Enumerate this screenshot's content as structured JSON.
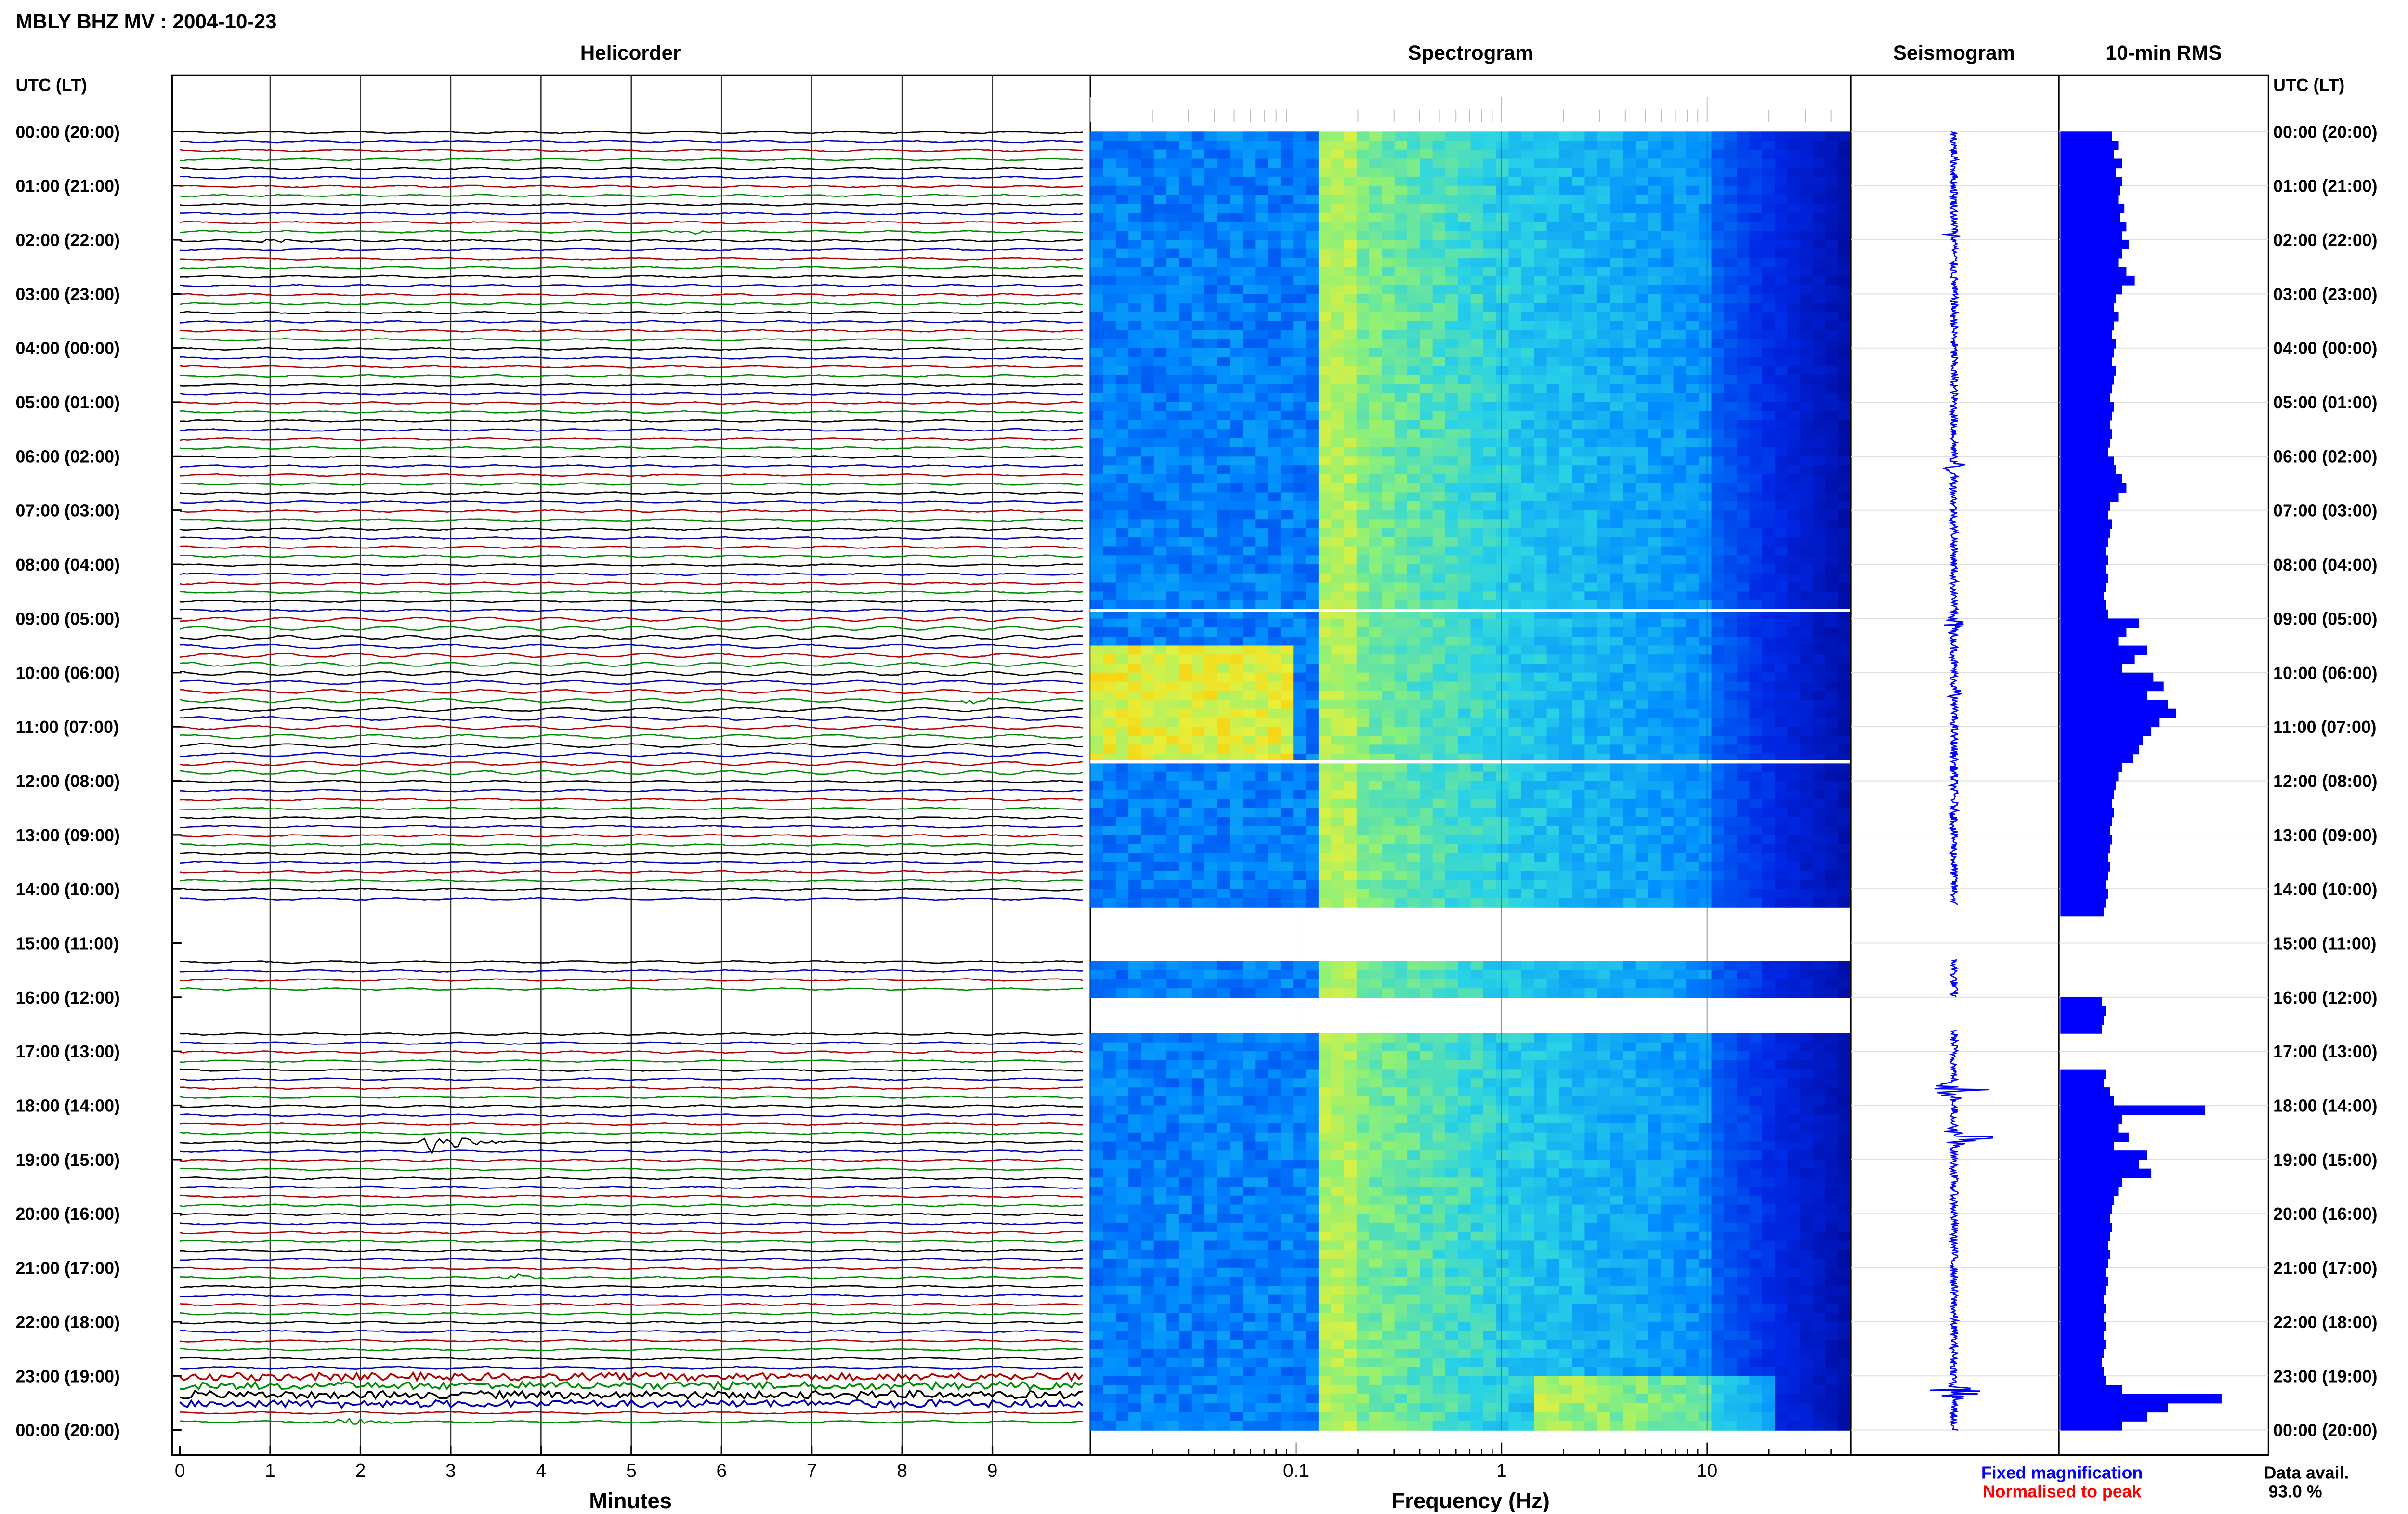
{
  "header": {
    "station": "MBLY BHZ MV : 2004-10-23"
  },
  "panels": {
    "helicorder": "Helicorder",
    "spectrogram": "Spectrogram",
    "seismogram": "Seismogram",
    "rms": "10-min RMS"
  },
  "time_axis": {
    "label_left": "UTC (LT)",
    "label_right": "UTC (LT)",
    "ticks": [
      "00:00 (20:00)",
      "01:00 (21:00)",
      "02:00 (22:00)",
      "03:00 (23:00)",
      "04:00 (00:00)",
      "05:00 (01:00)",
      "06:00 (02:00)",
      "07:00 (03:00)",
      "08:00 (04:00)",
      "09:00 (05:00)",
      "10:00 (06:00)",
      "11:00 (07:00)",
      "12:00 (08:00)",
      "13:00 (09:00)",
      "14:00 (10:00)",
      "15:00 (11:00)",
      "16:00 (12:00)",
      "17:00 (13:00)",
      "18:00 (14:00)",
      "19:00 (15:00)",
      "20:00 (16:00)",
      "21:00 (17:00)",
      "22:00 (18:00)",
      "23:00 (19:00)",
      "00:00 (20:00)"
    ]
  },
  "legend": {
    "fixed": "Fixed magnification",
    "normalised": "Normalised to peak",
    "avail_label": "Data avail.",
    "avail_value": "93.0 %",
    "fixed_color": "#0000ff",
    "normalised_color": "#ff0000"
  },
  "chart_data": [
    {
      "type": "line",
      "name": "helicorder",
      "title": "Helicorder",
      "xlabel": "Minutes",
      "xlim": [
        0,
        10
      ],
      "x_ticks": [
        "0",
        "1",
        "2",
        "3",
        "4",
        "5",
        "6",
        "7",
        "8",
        "9"
      ],
      "line_colors": [
        "#000000",
        "#0000b4",
        "#b40000",
        "#008c00"
      ],
      "gaps_utc_hours": [
        [
          14.3,
          15.3
        ],
        [
          16.0,
          16.6
        ]
      ],
      "events": [
        {
          "utc_hour": 0.3,
          "minute": 4.7,
          "amp": 0.3,
          "color": "#0000b4"
        },
        {
          "utc_hour": 2.0,
          "minute": 1.1,
          "amp": 0.2,
          "color": "#000000"
        },
        {
          "utc_hour": 1.9,
          "minute": 5.6,
          "amp": 0.3,
          "color": "#008c00"
        },
        {
          "utc_hour": 6.1,
          "minute": 1.4,
          "amp": 0.5,
          "color": "#b40000"
        },
        {
          "utc_hour": 9.0,
          "minute": 6.0,
          "amp": 0.8,
          "color": "#0000b4"
        },
        {
          "utc_hour": 10.5,
          "minute": 8.8,
          "amp": 0.2,
          "color": "#008c00"
        },
        {
          "utc_hour": 14.2,
          "minute": 7.1,
          "amp": 0.3,
          "color": "#b40000"
        },
        {
          "utc_hour": 17.4,
          "minute": 2.8,
          "amp": 0.2,
          "color": "#b40000"
        },
        {
          "utc_hour": 17.6,
          "minute": 4.4,
          "amp": 0.3,
          "color": "#0000b4"
        },
        {
          "utc_hour": 17.6,
          "minute": 6.2,
          "amp": 1.3,
          "color": "#0000b4"
        },
        {
          "utc_hour": 18.4,
          "minute": 4.9,
          "amp": 0.8,
          "color": "#008c00"
        },
        {
          "utc_hour": 18.6,
          "minute": 2.9,
          "amp": 1.6,
          "color": "#000000"
        },
        {
          "utc_hour": 19.5,
          "minute": 6.9,
          "amp": 0.3,
          "color": "#b40000"
        },
        {
          "utc_hour": 19.5,
          "minute": 7.9,
          "amp": 0.3,
          "color": "#b40000"
        },
        {
          "utc_hour": 21.2,
          "minute": 3.7,
          "amp": 0.3,
          "color": "#008c00"
        },
        {
          "utc_hour": 23.8,
          "minute": 1.9,
          "amp": 0.3,
          "color": "#008c00"
        }
      ],
      "noisy_utc_hours": [
        23.0,
        23.5
      ]
    },
    {
      "type": "heatmap",
      "name": "spectrogram",
      "title": "Spectrogram",
      "xlabel": "Frequency (Hz)",
      "x_scale": "log",
      "xlim": [
        0.01,
        50
      ],
      "x_ticks": [
        "0.1",
        "1",
        "10"
      ],
      "gaps_utc_hours": [
        [
          14.3,
          15.3
        ],
        [
          16.0,
          16.6
        ]
      ],
      "white_lines_utc_hours": [
        8.85,
        11.65
      ]
    },
    {
      "type": "line",
      "name": "seismogram",
      "title": "Seismogram",
      "gaps_utc_hours": [
        [
          14.3,
          15.3
        ],
        [
          16.0,
          16.6
        ]
      ],
      "spikes": [
        {
          "utc_hour": 1.9,
          "amp": 0.3
        },
        {
          "utc_hour": 6.2,
          "amp": 0.5
        },
        {
          "utc_hour": 9.1,
          "amp": 0.6
        },
        {
          "utc_hour": 10.4,
          "amp": 0.3
        },
        {
          "utc_hour": 17.7,
          "amp": 1.8
        },
        {
          "utc_hour": 18.6,
          "amp": 1.6
        },
        {
          "utc_hour": 23.3,
          "amp": 1.2
        }
      ]
    },
    {
      "type": "bar",
      "name": "rms",
      "title": "10-min RMS",
      "note": "values relative to maximum bar",
      "gaps_utc_hours": [
        [
          14.3,
          15.3
        ],
        [
          16.0,
          16.6
        ]
      ],
      "values": [
        0.25,
        0.28,
        0.26,
        0.3,
        0.27,
        0.3,
        0.29,
        0.28,
        0.31,
        0.29,
        0.32,
        0.3,
        0.33,
        0.3,
        0.28,
        0.32,
        0.36,
        0.3,
        0.27,
        0.26,
        0.28,
        0.26,
        0.25,
        0.27,
        0.26,
        0.25,
        0.27,
        0.26,
        0.25,
        0.24,
        0.26,
        0.25,
        0.24,
        0.25,
        0.24,
        0.23,
        0.26,
        0.27,
        0.3,
        0.32,
        0.28,
        0.24,
        0.23,
        0.25,
        0.24,
        0.23,
        0.22,
        0.23,
        0.22,
        0.23,
        0.22,
        0.21,
        0.22,
        0.23,
        0.38,
        0.32,
        0.28,
        0.42,
        0.36,
        0.3,
        0.45,
        0.5,
        0.42,
        0.52,
        0.56,
        0.48,
        0.44,
        0.4,
        0.38,
        0.35,
        0.3,
        0.28,
        0.27,
        0.26,
        0.25,
        0.26,
        0.25,
        0.24,
        0.25,
        0.24,
        0.23,
        0.24,
        0.23,
        0.22,
        0.23,
        0.22,
        0.21,
        null,
        null,
        null,
        null,
        null,
        null,
        null,
        null,
        null,
        0.2,
        0.22,
        0.21,
        0.2,
        null,
        null,
        null,
        null,
        0.22,
        0.21,
        0.24,
        0.26,
        0.7,
        0.3,
        0.28,
        0.33,
        0.26,
        0.42,
        0.38,
        0.44,
        0.3,
        0.28,
        0.26,
        0.25,
        0.24,
        0.25,
        0.24,
        0.23,
        0.24,
        0.23,
        0.22,
        0.23,
        0.22,
        0.21,
        0.22,
        0.21,
        0.22,
        0.21,
        0.22,
        0.21,
        0.2,
        0.21,
        0.22,
        0.3,
        0.78,
        0.52,
        0.42,
        0.3
      ]
    }
  ]
}
